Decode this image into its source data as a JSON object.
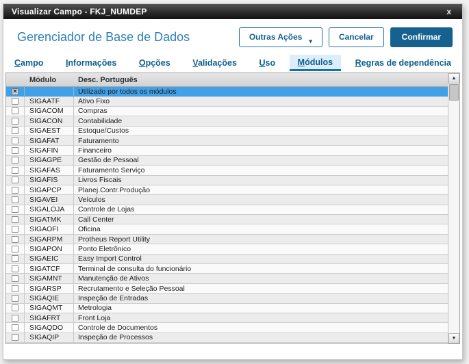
{
  "window": {
    "title": "Visualizar Campo - FKJ_NUMDEP",
    "close_glyph": "x"
  },
  "header": {
    "title": "Gerenciador de Base de Dados",
    "buttons": {
      "other_actions": "Outras Ações",
      "cancel": "Cancelar",
      "confirm": "Confirmar"
    }
  },
  "tabs": {
    "active_index": 5,
    "items": [
      "Campo",
      "Informações",
      "Opções",
      "Validações",
      "Uso",
      "Módulos",
      "Regras de dependência"
    ]
  },
  "icons": {
    "caret_down": "▾",
    "scroll_up": "▲",
    "scroll_down": "▼",
    "checked_glyph": "✕"
  },
  "colors": {
    "accent": "#16618f",
    "selected_row": "#41a1e8",
    "active_tab_bg": "#ddedf9",
    "heading_blue": "#2e80b9",
    "titlebar_gradient": [
      "#555555",
      "#121212"
    ]
  },
  "table": {
    "columns": [
      "Módulo",
      "Desc. Português"
    ],
    "rows": [
      {
        "module": "",
        "desc": "Utilizado por todos os módulos",
        "checked": true,
        "selected": true
      },
      {
        "module": "SIGAATF",
        "desc": "Ativo Fixo"
      },
      {
        "module": "SIGACOM",
        "desc": "Compras"
      },
      {
        "module": "SIGACON",
        "desc": "Contabilidade"
      },
      {
        "module": "SIGAEST",
        "desc": "Estoque/Custos"
      },
      {
        "module": "SIGAFAT",
        "desc": "Faturamento"
      },
      {
        "module": "SIGAFIN",
        "desc": "Financeiro"
      },
      {
        "module": "SIGAGPE",
        "desc": "Gestão de Pessoal"
      },
      {
        "module": "SIGAFAS",
        "desc": "Faturamento Serviço"
      },
      {
        "module": "SIGAFIS",
        "desc": "Livros Fiscais"
      },
      {
        "module": "SIGAPCP",
        "desc": "Planej.Contr.Produção"
      },
      {
        "module": "SIGAVEI",
        "desc": "Veículos"
      },
      {
        "module": "SIGALOJA",
        "desc": "Controle de Lojas"
      },
      {
        "module": "SIGATMK",
        "desc": "Call Center"
      },
      {
        "module": "SIGAOFI",
        "desc": "Oficina"
      },
      {
        "module": "SIGARPM",
        "desc": "Protheus Report Utility"
      },
      {
        "module": "SIGAPON",
        "desc": "Ponto Eletrônico"
      },
      {
        "module": "SIGAEIC",
        "desc": "Easy Import Control"
      },
      {
        "module": "SIGATCF",
        "desc": "Terminal de consulta do funcionário"
      },
      {
        "module": "SIGAMNT",
        "desc": "Manutenção de Ativos"
      },
      {
        "module": "SIGARSP",
        "desc": "Recrutamento e Seleção Pessoal"
      },
      {
        "module": "SIGAQIE",
        "desc": "Inspeção de Entradas"
      },
      {
        "module": "SIGAQMT",
        "desc": "Metrologia"
      },
      {
        "module": "SIGAFRT",
        "desc": "Front Loja"
      },
      {
        "module": "SIGAQDO",
        "desc": "Controle de Documentos"
      },
      {
        "module": "SIGAQIP",
        "desc": "Inspeção de Processos"
      }
    ]
  }
}
